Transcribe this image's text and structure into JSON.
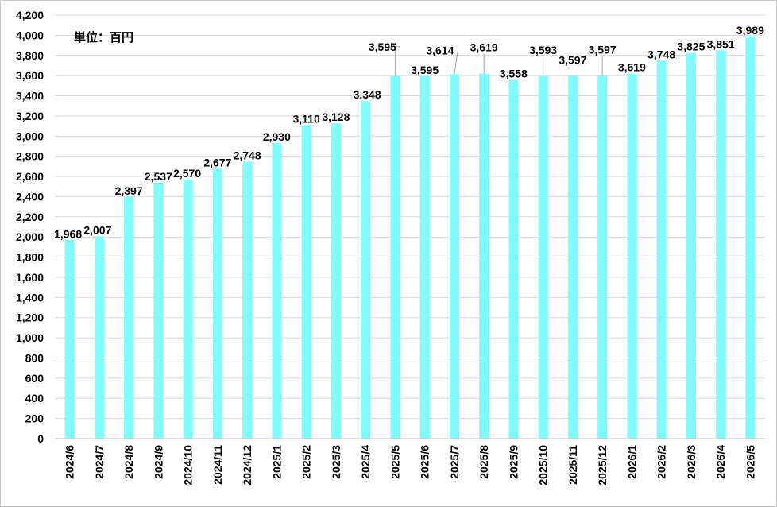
{
  "chart_data": {
    "type": "bar",
    "unit_label": "単位：百円",
    "categories": [
      "2024/6",
      "2024/7",
      "2024/8",
      "2024/9",
      "2024/10",
      "2024/11",
      "2024/12",
      "2025/1",
      "2025/2",
      "2025/3",
      "2025/4",
      "2025/5",
      "2025/6",
      "2025/7",
      "2025/8",
      "2025/9",
      "2025/10",
      "2025/11",
      "2025/12",
      "2026/1",
      "2026/2",
      "2026/3",
      "2026/4",
      "2026/5"
    ],
    "values": [
      1968,
      2007,
      2397,
      2537,
      2570,
      2677,
      2748,
      2930,
      3110,
      3128,
      3348,
      3595,
      3595,
      3614,
      3619,
      3558,
      3593,
      3597,
      3597,
      3619,
      3748,
      3825,
      3851,
      3989
    ],
    "data_labels": [
      "1,968",
      "2,007",
      "2,397",
      "2,537",
      "2,570",
      "2,677",
      "2,748",
      "2,930",
      "3,110",
      "3,128",
      "3,348",
      "3,595",
      "3,595",
      "3,614",
      "3,619",
      "3,558",
      "3,593",
      "3,597",
      "3,597",
      "3,619",
      "3,748",
      "3,825",
      "3,851",
      "3,989"
    ],
    "ylim": [
      0,
      4200
    ],
    "y_ticks": [
      0,
      200,
      400,
      600,
      800,
      1000,
      1200,
      1400,
      1600,
      1800,
      2000,
      2200,
      2400,
      2600,
      2800,
      3000,
      3200,
      3400,
      3600,
      3800,
      4000,
      4200
    ],
    "y_tick_labels": [
      "0",
      "200",
      "400",
      "600",
      "800",
      "1,000",
      "1,200",
      "1,400",
      "1,600",
      "1,800",
      "2,000",
      "2,200",
      "2,400",
      "2,600",
      "2,800",
      "3,000",
      "3,200",
      "3,400",
      "3,600",
      "3,800",
      "4,000",
      "4,200"
    ],
    "grid": true,
    "bar_color": "#7ffcff",
    "grid_color": "#d9d9d9"
  }
}
